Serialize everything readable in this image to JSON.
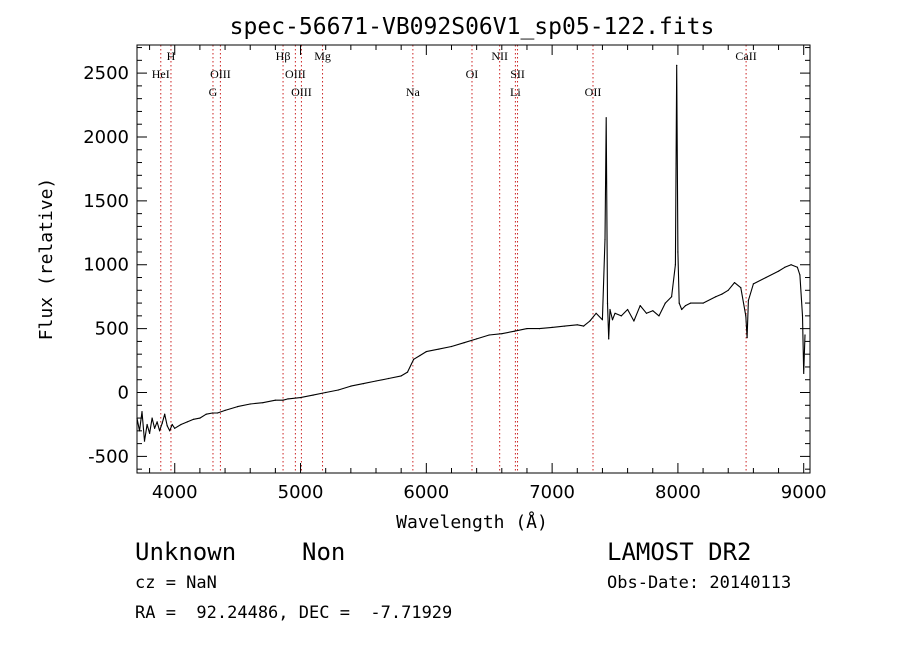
{
  "chart_data": {
    "type": "line",
    "title": "spec-56671-VB092S06V1_sp05-122.fits",
    "xlabel": "Wavelength (Å)",
    "ylabel": "Flux (relative)",
    "xlim": [
      3700,
      9050
    ],
    "ylim": [
      -630,
      2720
    ],
    "x_ticks": [
      4000,
      5000,
      6000,
      7000,
      8000,
      9000
    ],
    "y_ticks": [
      -500,
      0,
      500,
      1000,
      1500,
      2000,
      2500
    ],
    "grid": false,
    "legend": "none",
    "series": [
      {
        "x": [
          3700,
          3720,
          3740,
          3760,
          3780,
          3800,
          3820,
          3840,
          3860,
          3880,
          3900,
          3920,
          3940,
          3960,
          3980,
          4000,
          4050,
          4100,
          4150,
          4200,
          4250,
          4300,
          4340,
          4400,
          4500,
          4600,
          4700,
          4800,
          4861,
          4900,
          5000,
          5100,
          5200,
          5300,
          5400,
          5500,
          5600,
          5700,
          5800,
          5850,
          5900,
          5950,
          6000,
          6100,
          6200,
          6300,
          6400,
          6500,
          6600,
          6700,
          6800,
          6900,
          7000,
          7100,
          7200,
          7250,
          7300,
          7350,
          7400,
          7420,
          7430,
          7440,
          7450,
          7460,
          7480,
          7500,
          7550,
          7600,
          7650,
          7700,
          7750,
          7800,
          7850,
          7900,
          7950,
          7980,
          7990,
          8000,
          8010,
          8030,
          8060,
          8100,
          8200,
          8300,
          8350,
          8400,
          8450,
          8500,
          8540,
          8550,
          8560,
          8600,
          8700,
          8800,
          8850,
          8900,
          8950,
          8970,
          8990,
          9000,
          9010
        ],
        "y": [
          -200,
          -300,
          -150,
          -380,
          -250,
          -320,
          -200,
          -280,
          -230,
          -300,
          -240,
          -170,
          -260,
          -300,
          -250,
          -280,
          -250,
          -230,
          -210,
          -200,
          -170,
          -160,
          -160,
          -140,
          -110,
          -90,
          -80,
          -60,
          -60,
          -50,
          -40,
          -20,
          0,
          20,
          50,
          70,
          90,
          110,
          130,
          160,
          260,
          290,
          320,
          340,
          360,
          390,
          420,
          450,
          460,
          480,
          500,
          500,
          510,
          520,
          530,
          520,
          560,
          620,
          570,
          1200,
          2150,
          700,
          420,
          650,
          570,
          620,
          600,
          650,
          560,
          680,
          620,
          640,
          600,
          700,
          750,
          1000,
          2560,
          1100,
          700,
          650,
          680,
          700,
          700,
          750,
          770,
          800,
          860,
          820,
          600,
          430,
          720,
          850,
          900,
          950,
          980,
          1000,
          980,
          920,
          600,
          150,
          450
        ]
      }
    ],
    "spectral_lines": [
      {
        "label": "H",
        "x": 3970,
        "row": 0
      },
      {
        "label": "HeI",
        "x": 3889,
        "row": 1
      },
      {
        "label": "OIII",
        "x": 4363,
        "row": 1
      },
      {
        "label": "G",
        "x": 4304,
        "row": 2
      },
      {
        "label": "Hβ",
        "x": 4861,
        "row": 0
      },
      {
        "label": "OIII",
        "x": 4959,
        "row": 1
      },
      {
        "label": "OIII",
        "x": 5007,
        "row": 2
      },
      {
        "label": "Mg",
        "x": 5175,
        "row": 0
      },
      {
        "label": "Na",
        "x": 5893,
        "row": 2
      },
      {
        "label": "OI",
        "x": 6363,
        "row": 1
      },
      {
        "label": "NII",
        "x": 6583,
        "row": 0
      },
      {
        "label": "Li",
        "x": 6708,
        "row": 2
      },
      {
        "label": "OII",
        "x": 7325,
        "row": 2
      },
      {
        "label": "SII",
        "x": 6725,
        "row": 1
      },
      {
        "label": "CaII",
        "x": 8542,
        "row": 0
      }
    ]
  },
  "info": {
    "object_class": "Unknown",
    "object_subclass": "Non",
    "cz": "cz = NaN",
    "coords": "RA =  92.24486, DEC =  -7.71929",
    "survey": "LAMOST DR2",
    "obs_date": "Obs-Date: 20140113"
  },
  "colors": {
    "spectrum": "#000000",
    "line_marker": "#cc2222",
    "axes": "#000000",
    "background": "#ffffff"
  }
}
